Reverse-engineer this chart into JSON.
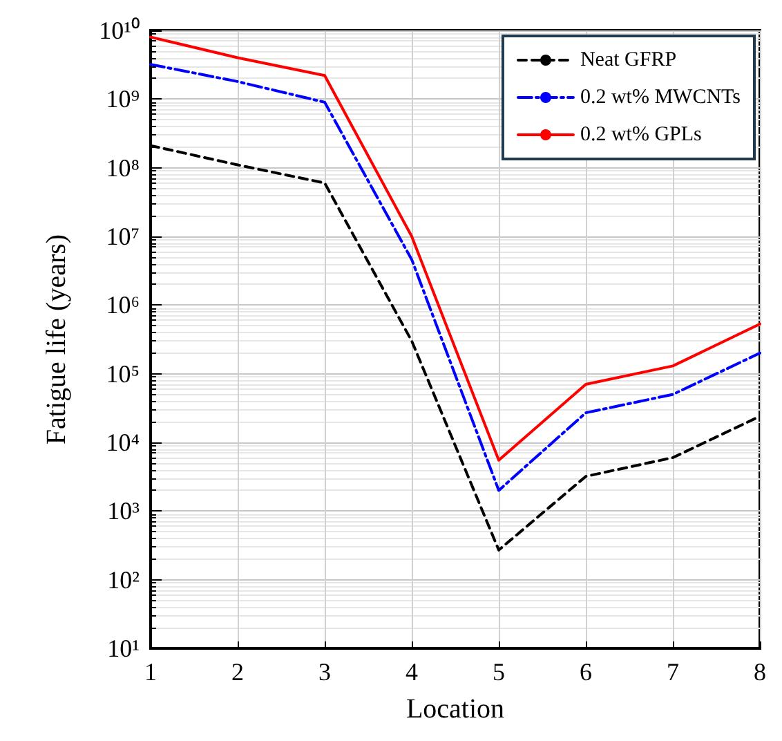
{
  "chart_data": {
    "type": "line",
    "xlabel": "Location",
    "ylabel": "Fatigue life (years)",
    "x": [
      1,
      2,
      3,
      4,
      5,
      6,
      7,
      8
    ],
    "xlim": [
      1,
      8
    ],
    "xticks": [
      1,
      2,
      3,
      4,
      5,
      6,
      7,
      8
    ],
    "log": true,
    "ylim": [
      10,
      10000000000
    ],
    "yticks": [
      {
        "value": 10,
        "label": "10¹"
      },
      {
        "value": 100,
        "label": "10²"
      },
      {
        "value": 1000,
        "label": "10³"
      },
      {
        "value": 10000,
        "label": "10⁴"
      },
      {
        "value": 100000,
        "label": "10⁵"
      },
      {
        "value": 1000000,
        "label": "10⁶"
      },
      {
        "value": 10000000,
        "label": "10⁷"
      },
      {
        "value": 100000000,
        "label": "10⁸"
      },
      {
        "value": 1000000000,
        "label": "10⁹"
      },
      {
        "value": 10000000000,
        "label": "10¹⁰"
      }
    ],
    "grid": true,
    "legend": "top right",
    "marker": "none",
    "series": [
      {
        "name": "Neat GFRP",
        "color": "#000000",
        "line_style": "dashed",
        "values": [
          210000000,
          110000000,
          60000000,
          300000,
          270,
          3200,
          6000,
          24000
        ]
      },
      {
        "name": "0.2 wt% MWCNTs",
        "color": "#0000ff",
        "line_style": "dashdot",
        "values": [
          3200000000,
          1800000000,
          900000000,
          4600000,
          2000,
          27000,
          50000,
          200000
        ]
      },
      {
        "name": "0.2 wt% GPLs",
        "color": "#ff0000",
        "line_style": "solid",
        "values": [
          8000000000,
          4000000000,
          2200000000,
          10000000,
          5500,
          70000,
          130000,
          530000
        ]
      }
    ]
  }
}
